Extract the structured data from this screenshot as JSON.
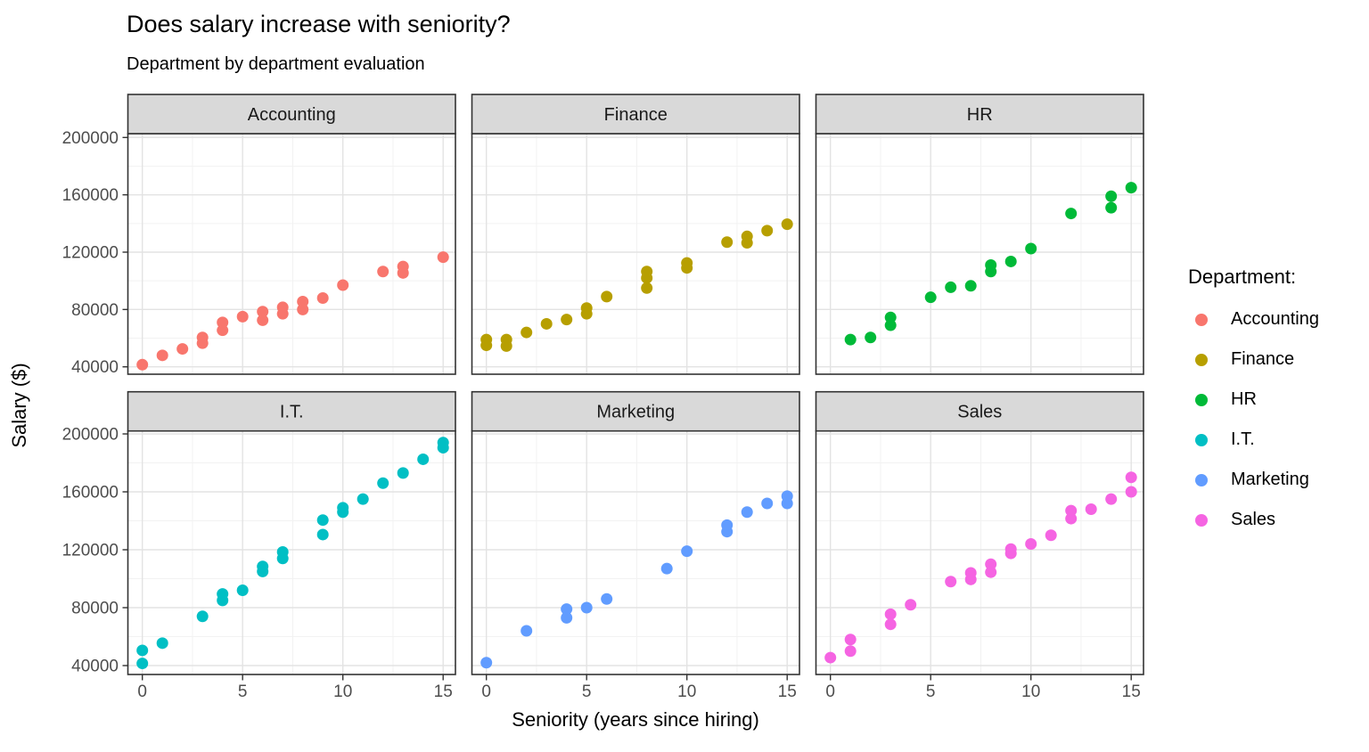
{
  "title": "Does salary increase with seniority?",
  "subtitle": "Department by department evaluation",
  "axes": {
    "x_title": "Seniority (years since hiring)",
    "y_title": "Salary ($)"
  },
  "legend": {
    "title": "Department:",
    "items": [
      {
        "label": "Accounting",
        "color": "#F8766D"
      },
      {
        "label": "Finance",
        "color": "#B79F00"
      },
      {
        "label": "HR",
        "color": "#00BA38"
      },
      {
        "label": "I.T.",
        "color": "#00BFC4"
      },
      {
        "label": "Marketing",
        "color": "#619CFF"
      },
      {
        "label": "Sales",
        "color": "#F564E2"
      }
    ]
  },
  "chart_data": {
    "type": "scatter",
    "title": "Does salary increase with seniority?",
    "subtitle": "Department by department evaluation",
    "xlabel": "Seniority (years since hiring)",
    "ylabel": "Salary ($)",
    "x_range": [
      0,
      15
    ],
    "y_range": [
      40000,
      200000
    ],
    "x_major_ticks": [
      0,
      5,
      10,
      15
    ],
    "x_minor_ticks": [
      2.5,
      7.5,
      12.5
    ],
    "y_major_ticks": [
      40000,
      80000,
      120000,
      160000,
      200000
    ],
    "y_minor_ticks": [
      60000,
      100000,
      140000,
      180000
    ],
    "grid": true,
    "legend_position": "right",
    "facet_layout": {
      "rows": 2,
      "cols": 3,
      "order": [
        "Accounting",
        "Finance",
        "HR",
        "I.T.",
        "Marketing",
        "Sales"
      ]
    },
    "facets": [
      {
        "name": "Accounting",
        "color": "#F8766D",
        "points": [
          [
            0,
            41500
          ],
          [
            1,
            48000
          ],
          [
            2,
            52500
          ],
          [
            3,
            56500
          ],
          [
            3,
            60500
          ],
          [
            4,
            65500
          ],
          [
            4,
            71000
          ],
          [
            5,
            75000
          ],
          [
            6,
            72500
          ],
          [
            6,
            78500
          ],
          [
            7,
            77000
          ],
          [
            7,
            81500
          ],
          [
            8,
            80000
          ],
          [
            8,
            85500
          ],
          [
            9,
            88000
          ],
          [
            10,
            97000
          ],
          [
            12,
            106500
          ],
          [
            13,
            105500
          ],
          [
            13,
            110000
          ],
          [
            15,
            116500
          ]
        ]
      },
      {
        "name": "Finance",
        "color": "#B79F00",
        "points": [
          [
            0,
            55000
          ],
          [
            0,
            59000
          ],
          [
            1,
            54500
          ],
          [
            1,
            59000
          ],
          [
            2,
            64000
          ],
          [
            3,
            70000
          ],
          [
            4,
            73000
          ],
          [
            5,
            77000
          ],
          [
            5,
            81000
          ],
          [
            6,
            89000
          ],
          [
            8,
            95000
          ],
          [
            8,
            102000
          ],
          [
            8,
            106500
          ],
          [
            10,
            109000
          ],
          [
            10,
            112500
          ],
          [
            12,
            127000
          ],
          [
            13,
            126500
          ],
          [
            13,
            131000
          ],
          [
            14,
            135000
          ],
          [
            15,
            139500
          ]
        ]
      },
      {
        "name": "HR",
        "color": "#00BA38",
        "points": [
          [
            1,
            59000
          ],
          [
            2,
            60500
          ],
          [
            3,
            69000
          ],
          [
            3,
            74500
          ],
          [
            5,
            88500
          ],
          [
            6,
            95500
          ],
          [
            7,
            96500
          ],
          [
            8,
            106500
          ],
          [
            8,
            111000
          ],
          [
            9,
            113500
          ],
          [
            10,
            122500
          ],
          [
            12,
            147000
          ],
          [
            14,
            151000
          ],
          [
            14,
            159000
          ],
          [
            15,
            165000
          ]
        ]
      },
      {
        "name": "I.T.",
        "color": "#00BFC4",
        "points": [
          [
            0,
            41500
          ],
          [
            0,
            50500
          ],
          [
            1,
            55500
          ],
          [
            3,
            74000
          ],
          [
            4,
            85000
          ],
          [
            4,
            89500
          ],
          [
            5,
            92000
          ],
          [
            6,
            105000
          ],
          [
            6,
            108500
          ],
          [
            7,
            114000
          ],
          [
            7,
            118500
          ],
          [
            9,
            130500
          ],
          [
            9,
            140500
          ],
          [
            10,
            146000
          ],
          [
            10,
            149000
          ],
          [
            11,
            155000
          ],
          [
            12,
            166000
          ],
          [
            13,
            173000
          ],
          [
            14,
            182500
          ],
          [
            15,
            190500
          ],
          [
            15,
            194000
          ]
        ]
      },
      {
        "name": "Marketing",
        "color": "#619CFF",
        "points": [
          [
            0,
            42000
          ],
          [
            2,
            64000
          ],
          [
            4,
            73000
          ],
          [
            4,
            79000
          ],
          [
            5,
            80000
          ],
          [
            6,
            86000
          ],
          [
            9,
            107000
          ],
          [
            10,
            119000
          ],
          [
            12,
            132500
          ],
          [
            12,
            137000
          ],
          [
            13,
            146000
          ],
          [
            14,
            152000
          ],
          [
            15,
            152000
          ],
          [
            15,
            157000
          ]
        ]
      },
      {
        "name": "Sales",
        "color": "#F564E2",
        "points": [
          [
            0,
            45500
          ],
          [
            1,
            50000
          ],
          [
            1,
            58000
          ],
          [
            3,
            68500
          ],
          [
            3,
            75500
          ],
          [
            4,
            82000
          ],
          [
            6,
            98000
          ],
          [
            7,
            99500
          ],
          [
            7,
            104000
          ],
          [
            8,
            104500
          ],
          [
            8,
            110000
          ],
          [
            9,
            117500
          ],
          [
            9,
            120500
          ],
          [
            10,
            124000
          ],
          [
            11,
            130000
          ],
          [
            12,
            141500
          ],
          [
            12,
            147000
          ],
          [
            13,
            148000
          ],
          [
            14,
            155000
          ],
          [
            15,
            160000
          ],
          [
            15,
            170000
          ]
        ]
      }
    ]
  }
}
